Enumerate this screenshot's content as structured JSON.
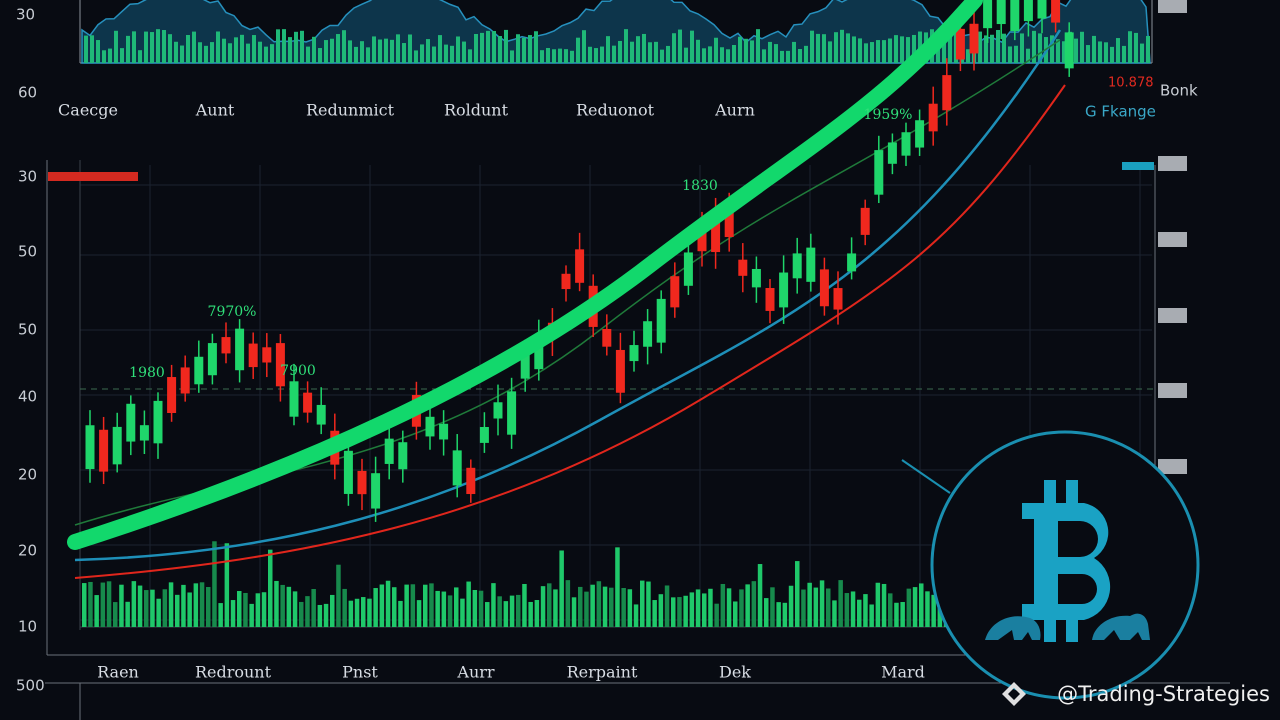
{
  "top_panel": {
    "y_labels": [
      "30",
      "60"
    ],
    "x_labels": [
      "Caecge",
      "Aunt",
      "Redunmict",
      "Roldunt",
      "Reduonot",
      "Aurn"
    ],
    "red_label": "10.878",
    "right_labels": [
      "Bonk",
      "G Fkange"
    ]
  },
  "main_panel": {
    "y_labels": [
      "30",
      "50",
      "50",
      "40",
      "20",
      "20",
      "10"
    ],
    "annotations": [
      "7970%",
      "1980",
      "7900",
      "1959%",
      "1830"
    ],
    "x_labels": [
      "Raen",
      "Redrount",
      "Pnst",
      "Aurr",
      "Rerpaint",
      "Dek",
      "Mard"
    ]
  },
  "bottom_panel": {
    "y_label": "500"
  },
  "watermark": "@Trading-Strategies"
}
